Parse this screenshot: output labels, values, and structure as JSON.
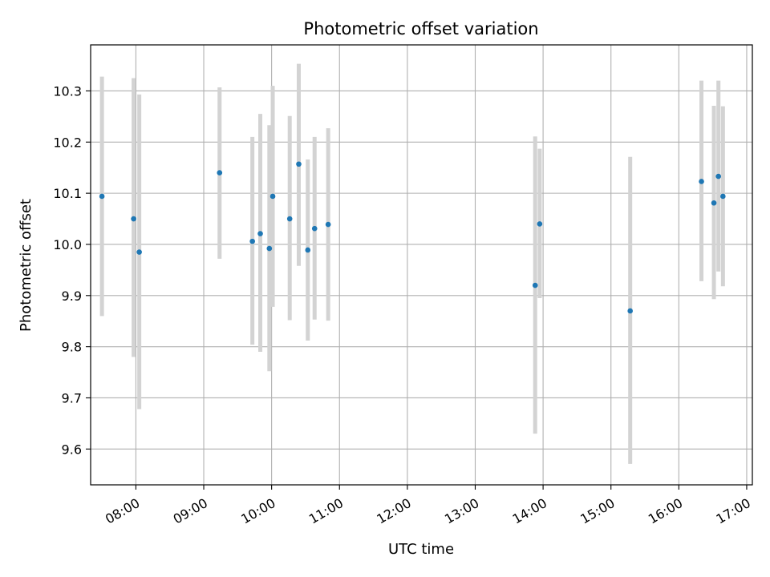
{
  "chart_data": {
    "type": "scatter",
    "title": "Photometric offset variation",
    "xlabel": "UTC time",
    "ylabel": "Photometric offset",
    "x_ticks": [
      "08:00",
      "09:00",
      "10:00",
      "11:00",
      "12:00",
      "13:00",
      "14:00",
      "15:00",
      "16:00",
      "17:00"
    ],
    "y_ticks": [
      "9.6",
      "9.7",
      "9.8",
      "9.9",
      "10.0",
      "10.1",
      "10.2",
      "10.3"
    ],
    "xlim": [
      "07:20",
      "17:05"
    ],
    "ylim": [
      9.53,
      10.39
    ],
    "grid": true,
    "point_color": "#1f77b4",
    "errorbar_color": "#d3d3d3",
    "points": [
      {
        "x": "07:30",
        "y": 10.094,
        "low": 9.86,
        "high": 10.328
      },
      {
        "x": "07:58",
        "y": 10.05,
        "low": 9.78,
        "high": 10.325
      },
      {
        "x": "08:03",
        "y": 9.985,
        "low": 9.678,
        "high": 10.293
      },
      {
        "x": "09:14",
        "y": 10.14,
        "low": 9.972,
        "high": 10.307
      },
      {
        "x": "09:43",
        "y": 10.006,
        "low": 9.804,
        "high": 10.21
      },
      {
        "x": "09:50",
        "y": 10.021,
        "low": 9.79,
        "high": 10.255
      },
      {
        "x": "09:58",
        "y": 9.992,
        "low": 9.752,
        "high": 10.233
      },
      {
        "x": "10:01",
        "y": 10.094,
        "low": 9.878,
        "high": 10.31
      },
      {
        "x": "10:16",
        "y": 10.05,
        "low": 9.852,
        "high": 10.251
      },
      {
        "x": "10:24",
        "y": 10.157,
        "low": 9.958,
        "high": 10.353
      },
      {
        "x": "10:32",
        "y": 9.989,
        "low": 9.812,
        "high": 10.166
      },
      {
        "x": "10:38",
        "y": 10.031,
        "low": 9.853,
        "high": 10.21
      },
      {
        "x": "10:50",
        "y": 10.039,
        "low": 9.851,
        "high": 10.227
      },
      {
        "x": "13:53",
        "y": 9.92,
        "low": 9.63,
        "high": 10.211
      },
      {
        "x": "13:57",
        "y": 10.04,
        "low": 9.895,
        "high": 10.187
      },
      {
        "x": "15:17",
        "y": 9.87,
        "low": 9.571,
        "high": 10.171
      },
      {
        "x": "16:20",
        "y": 10.123,
        "low": 9.928,
        "high": 10.32
      },
      {
        "x": "16:31",
        "y": 10.081,
        "low": 9.893,
        "high": 10.271
      },
      {
        "x": "16:35",
        "y": 10.133,
        "low": 9.947,
        "high": 10.32
      },
      {
        "x": "16:39",
        "y": 10.094,
        "low": 9.918,
        "high": 10.27
      }
    ]
  }
}
